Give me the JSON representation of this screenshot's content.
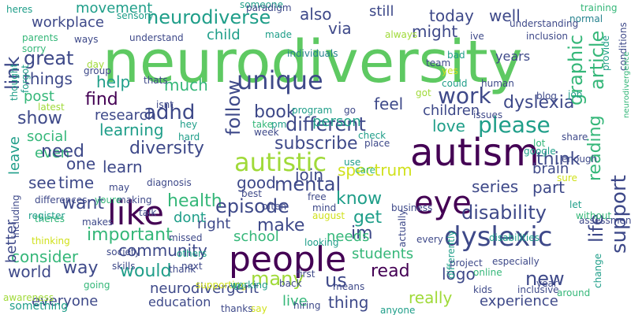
{
  "palette": {
    "green": "#5ec962",
    "lime": "#a0da39",
    "yellow": "#d0e11c",
    "teal": "#1f9e89",
    "seagreen": "#35b779",
    "blue": "#31688e",
    "navy": "#3e4989",
    "indigo": "#443983",
    "purple": "#440154",
    "slate": "#26828e"
  },
  "words": [
    "neurodiversity",
    "people",
    "autism",
    "like",
    "eye",
    "dyslexic",
    "unique",
    "autistic",
    "neurodiverse",
    "workplace",
    "link",
    "great",
    "things",
    "post",
    "show",
    "help",
    "find",
    "adhd",
    "follow",
    "book",
    "mental",
    "health",
    "episode",
    "learn",
    "learning",
    "diversity",
    "different",
    "please",
    "work",
    "dyslexia",
    "graphic",
    "article",
    "support",
    "life",
    "reading",
    "disability",
    "series",
    "part",
    "love",
    "children",
    "brain",
    "spectrum",
    "join",
    "subscribe",
    "know",
    "get",
    "make",
    "important",
    "want",
    "time",
    "one",
    "see",
    "leave",
    "social",
    "even",
    "need",
    "consider",
    "world",
    "way",
    "would",
    "community",
    "right",
    "dont",
    "good",
    "many",
    "read",
    "us",
    "im",
    "needs",
    "students",
    "logo",
    "new",
    "experience",
    "everyone",
    "education",
    "neurodivergent",
    "thing",
    "really",
    "live",
    "think",
    "feel",
    "person",
    "today",
    "also",
    "still",
    "might",
    "well",
    "via",
    "child",
    "much",
    "research",
    "movement",
    "better",
    "school",
    "something",
    "years",
    "nd"
  ],
  "small_words": [
    "heres",
    "sensory",
    "someone",
    "paradigm",
    "training",
    "normal",
    "parents",
    "ways",
    "understand",
    "made",
    "individuals",
    "always",
    "understanding",
    "inclusion",
    "sorry",
    "day",
    "group",
    "thats",
    "isnt",
    "hey",
    "hard",
    "pm",
    "week",
    "take",
    "issues",
    "blog",
    "job",
    "provide",
    "conditions",
    "thought",
    "forgot",
    "latest",
    "program",
    "go",
    "got",
    "yes",
    "bad",
    "team",
    "ive",
    "could",
    "human",
    "lot",
    "check",
    "place",
    "google",
    "share",
    "enough",
    "neurodivergence",
    "best",
    "may",
    "diagnosis",
    "making",
    "differences",
    "youre",
    "theres",
    "use",
    "care",
    "free",
    "sure",
    "let",
    "including",
    "register",
    "makes",
    "talk",
    "missed",
    "august",
    "business",
    "often",
    "mind",
    "assessments",
    "without",
    "disabilities",
    "every",
    "actually",
    "looking",
    "thinking",
    "society",
    "skills",
    "next",
    "thank",
    "others",
    "th",
    "back",
    "first",
    "hiring",
    "supporting",
    "going",
    "awareness",
    "say",
    "thanks",
    "working",
    "means",
    "differently",
    "anyone",
    "online",
    "kids",
    "inclusive",
    "around",
    "project",
    "especially",
    "change",
    "year"
  ]
}
